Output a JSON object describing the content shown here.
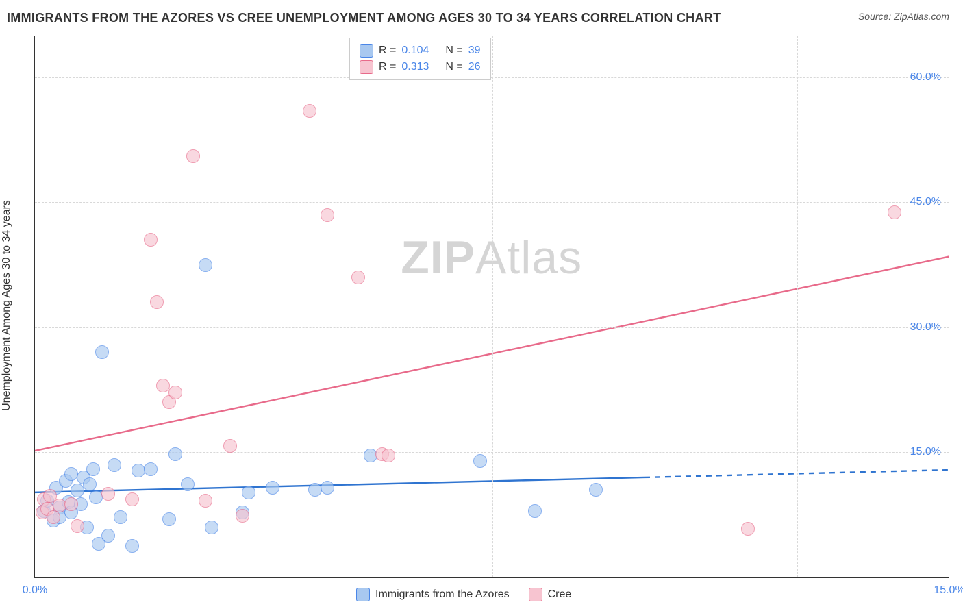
{
  "title": "IMMIGRANTS FROM THE AZORES VS CREE UNEMPLOYMENT AMONG AGES 30 TO 34 YEARS CORRELATION CHART",
  "source_label": "Source: ",
  "source_name": "ZipAtlas.com",
  "yaxis_label": "Unemployment Among Ages 30 to 34 years",
  "watermark_a": "ZIP",
  "watermark_b": "Atlas",
  "chart": {
    "type": "scatter",
    "xlim": [
      0,
      15
    ],
    "ylim": [
      0,
      65
    ],
    "x_ticks": [
      {
        "v": 0,
        "label": "0.0%"
      },
      {
        "v": 15,
        "label": "15.0%"
      }
    ],
    "y_ticks": [
      {
        "v": 15,
        "label": "15.0%"
      },
      {
        "v": 30,
        "label": "30.0%"
      },
      {
        "v": 45,
        "label": "45.0%"
      },
      {
        "v": 60,
        "label": "60.0%"
      }
    ],
    "x_grid_minor": [
      2.5,
      5.0,
      7.5,
      10.0,
      12.5
    ],
    "background_color": "#ffffff",
    "grid_color": "#d8d8d8",
    "point_radius": 10,
    "point_opacity": 0.65,
    "series": [
      {
        "id": "azores",
        "label": "Immigrants from the Azores",
        "fill": "#a8c8f0",
        "stroke": "#4a86e8",
        "line_color": "#2f74d0",
        "line_width": 2.4,
        "r_value": "0.104",
        "n_value": "39",
        "trend": {
          "x1": 0,
          "y1": 10.2,
          "x2": 10,
          "y2": 12.0,
          "dash_from_x": 10,
          "x3": 15,
          "y3": 12.9
        },
        "points": [
          [
            0.15,
            8.0
          ],
          [
            0.2,
            9.2
          ],
          [
            0.3,
            6.8
          ],
          [
            0.35,
            10.8
          ],
          [
            0.4,
            8.4
          ],
          [
            0.4,
            7.2
          ],
          [
            0.5,
            11.6
          ],
          [
            0.55,
            9.0
          ],
          [
            0.6,
            12.4
          ],
          [
            0.6,
            7.8
          ],
          [
            0.7,
            10.4
          ],
          [
            0.75,
            8.8
          ],
          [
            0.8,
            12.0
          ],
          [
            0.85,
            6.0
          ],
          [
            0.9,
            11.2
          ],
          [
            0.95,
            13.0
          ],
          [
            1.0,
            9.6
          ],
          [
            1.05,
            4.0
          ],
          [
            1.1,
            27.0
          ],
          [
            1.2,
            5.0
          ],
          [
            1.3,
            13.5
          ],
          [
            1.4,
            7.2
          ],
          [
            1.6,
            3.8
          ],
          [
            1.7,
            12.8
          ],
          [
            1.9,
            13.0
          ],
          [
            2.2,
            7.0
          ],
          [
            2.3,
            14.8
          ],
          [
            2.5,
            11.2
          ],
          [
            2.8,
            37.5
          ],
          [
            2.9,
            6.0
          ],
          [
            3.4,
            7.8
          ],
          [
            3.5,
            10.2
          ],
          [
            3.9,
            10.8
          ],
          [
            4.6,
            10.5
          ],
          [
            4.8,
            10.8
          ],
          [
            5.5,
            14.6
          ],
          [
            7.3,
            14.0
          ],
          [
            8.2,
            8.0
          ],
          [
            9.2,
            10.5
          ]
        ]
      },
      {
        "id": "cree",
        "label": "Cree",
        "fill": "#f7c4d0",
        "stroke": "#e86a8a",
        "line_color": "#e86a8a",
        "line_width": 2.4,
        "r_value": "0.313",
        "n_value": "26",
        "trend": {
          "x1": 0,
          "y1": 15.2,
          "x2": 15,
          "y2": 38.5
        },
        "points": [
          [
            0.12,
            7.8
          ],
          [
            0.15,
            9.4
          ],
          [
            0.2,
            8.2
          ],
          [
            0.25,
            9.8
          ],
          [
            0.3,
            7.2
          ],
          [
            0.4,
            8.6
          ],
          [
            0.6,
            8.8
          ],
          [
            0.7,
            6.2
          ],
          [
            1.2,
            10.0
          ],
          [
            1.6,
            9.4
          ],
          [
            1.9,
            40.5
          ],
          [
            2.0,
            33.0
          ],
          [
            2.1,
            23.0
          ],
          [
            2.2,
            21.0
          ],
          [
            2.3,
            22.2
          ],
          [
            2.6,
            50.5
          ],
          [
            2.8,
            9.2
          ],
          [
            3.2,
            15.8
          ],
          [
            3.4,
            7.4
          ],
          [
            4.5,
            56.0
          ],
          [
            4.8,
            43.5
          ],
          [
            5.3,
            36.0
          ],
          [
            5.7,
            14.8
          ],
          [
            5.8,
            14.6
          ],
          [
            11.7,
            5.8
          ],
          [
            14.1,
            43.8
          ]
        ]
      }
    ]
  },
  "legend_top": {
    "r_label": "R =",
    "n_label": "N ="
  }
}
